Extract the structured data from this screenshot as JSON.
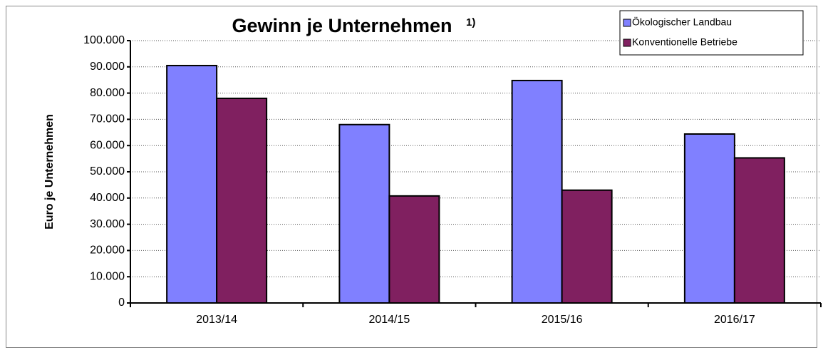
{
  "chart_data": {
    "type": "bar",
    "title": "Gewinn je Unternehmen",
    "title_note": "1)",
    "y_label": "Euro je Unternehmen",
    "categories": [
      "2013/14",
      "2014/15",
      "2015/16",
      "2016/17"
    ],
    "series": [
      {
        "name": "Ökologischer Landbau",
        "color": "#8080ff",
        "values": [
          90500,
          68000,
          84800,
          64400
        ]
      },
      {
        "name": "Konventionelle Betriebe",
        "color": "#802060",
        "values": [
          78000,
          40800,
          43000,
          55300
        ]
      }
    ],
    "ylim": [
      0,
      100000
    ],
    "yticks": [
      0,
      {
        "value": 10000,
        "label": "10.000"
      },
      {
        "value": 20000,
        "label": "20.000"
      },
      {
        "value": 30000,
        "label": "30.000"
      },
      {
        "value": 40000,
        "label": "40.000"
      },
      {
        "value": 50000,
        "label": "50.000"
      },
      {
        "value": 60000,
        "label": "60.000"
      },
      {
        "value": 70000,
        "label": "70.000"
      },
      {
        "value": 80000,
        "label": "80.000"
      },
      {
        "value": 90000,
        "label": "90.000"
      },
      {
        "value": 100000,
        "label": "100.000"
      }
    ],
    "grid": true,
    "legend": "top-right"
  }
}
